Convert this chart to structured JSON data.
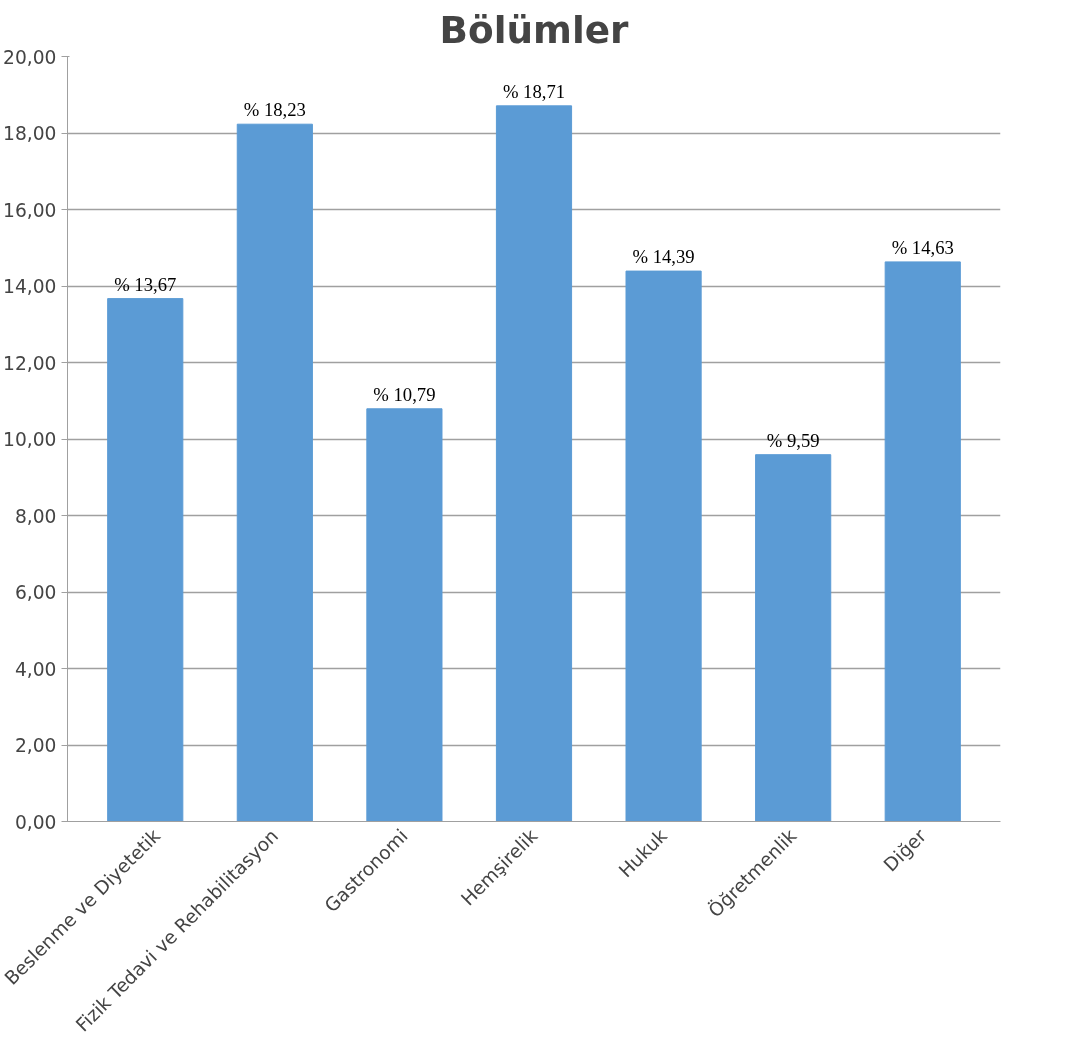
{
  "chart_data": {
    "type": "bar",
    "title": "Bölümler",
    "categories": [
      "Beslenme ve Diyetetik",
      "Fizik Tedavi ve Rehabilitasyon",
      "Gastronomi",
      "Hemşirelik",
      "Hukuk",
      "Öğretmenlik",
      "Diğer"
    ],
    "values": [
      13.67,
      18.23,
      10.79,
      18.71,
      14.39,
      9.59,
      14.63
    ],
    "value_labels": [
      "% 13,67",
      "% 18,23",
      "% 10,79",
      "% 18,71",
      "% 14,39",
      "% 9,59",
      "% 14,63"
    ],
    "color": "#5b9bd5",
    "ylim": [
      0,
      20
    ],
    "yticks": [
      {
        "value": 0,
        "label": "0,00"
      },
      {
        "value": 2,
        "label": "2,00"
      },
      {
        "value": 4,
        "label": "4,00"
      },
      {
        "value": 6,
        "label": "6,00"
      },
      {
        "value": 8,
        "label": "8,00"
      },
      {
        "value": 10,
        "label": "10,00"
      },
      {
        "value": 12,
        "label": "12,00"
      },
      {
        "value": 14,
        "label": "14,00"
      },
      {
        "value": 16,
        "label": "16,00"
      },
      {
        "value": 18,
        "label": "18,00"
      },
      {
        "value": 20,
        "label": "20,00"
      }
    ],
    "grid": "y"
  }
}
